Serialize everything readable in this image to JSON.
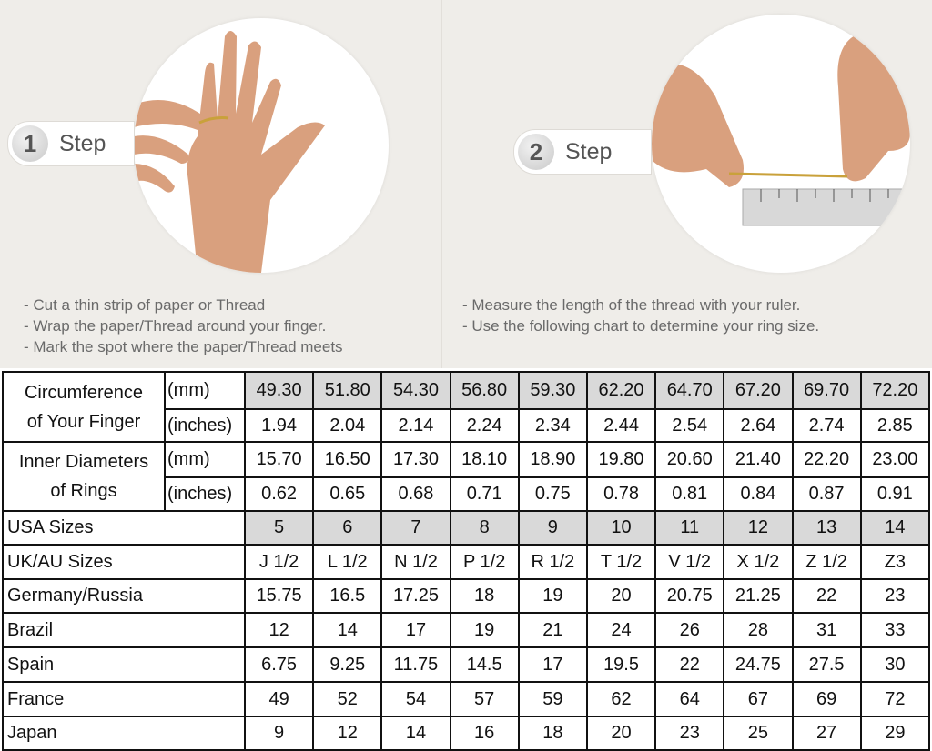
{
  "steps": [
    {
      "number": "1",
      "label": "Step",
      "instructions": [
        "-  Cut a thin strip of paper or Thread",
        "-  Wrap the paper/Thread around your finger.",
        "-  Mark the spot where the paper/Thread meets"
      ]
    },
    {
      "number": "2",
      "label": "Step",
      "instructions": [
        "-  Measure the length of the thread with your ruler.",
        "-  Use the following chart to determine your ring size."
      ]
    }
  ],
  "colors": {
    "background": "#efede9",
    "shaded_cell": "#d9d9d9",
    "border": "#111111",
    "skin": "#d9a07e"
  },
  "table": {
    "circumference": {
      "label_line1": "Circumference",
      "label_line2": "of Your Finger",
      "mm_label": "(mm)",
      "mm": [
        "49.30",
        "51.80",
        "54.30",
        "56.80",
        "59.30",
        "62.20",
        "64.70",
        "67.20",
        "69.70",
        "72.20"
      ],
      "in_label": "(inches)",
      "in": [
        "1.94",
        "2.04",
        "2.14",
        "2.24",
        "2.34",
        "2.44",
        "2.54",
        "2.64",
        "2.74",
        "2.85"
      ]
    },
    "diameter": {
      "label_line1": "Inner Diameters",
      "label_line2": "of Rings",
      "mm_label": "(mm)",
      "mm": [
        "15.70",
        "16.50",
        "17.30",
        "18.10",
        "18.90",
        "19.80",
        "20.60",
        "21.40",
        "22.20",
        "23.00"
      ],
      "in_label": "(inches)",
      "in": [
        "0.62",
        "0.65",
        "0.68",
        "0.71",
        "0.75",
        "0.78",
        "0.81",
        "0.84",
        "0.87",
        "0.91"
      ]
    },
    "rows": [
      {
        "label": "USA Sizes",
        "shaded": true,
        "values": [
          "5",
          "6",
          "7",
          "8",
          "9",
          "10",
          "11",
          "12",
          "13",
          "14"
        ]
      },
      {
        "label": "UK/AU Sizes",
        "values": [
          "J 1/2",
          "L 1/2",
          "N 1/2",
          "P 1/2",
          "R 1/2",
          "T 1/2",
          "V 1/2",
          "X 1/2",
          "Z 1/2",
          "Z3"
        ]
      },
      {
        "label": "Germany/Russia",
        "values": [
          "15.75",
          "16.5",
          "17.25",
          "18",
          "19",
          "20",
          "20.75",
          "21.25",
          "22",
          "23"
        ]
      },
      {
        "label": "Brazil",
        "values": [
          "12",
          "14",
          "17",
          "19",
          "21",
          "24",
          "26",
          "28",
          "31",
          "33"
        ]
      },
      {
        "label": "Spain",
        "values": [
          "6.75",
          "9.25",
          "11.75",
          "14.5",
          "17",
          "19.5",
          "22",
          "24.75",
          "27.5",
          "30"
        ]
      },
      {
        "label": "France",
        "values": [
          "49",
          "52",
          "54",
          "57",
          "59",
          "62",
          "64",
          "67",
          "69",
          "72"
        ]
      },
      {
        "label": "Japan",
        "values": [
          "9",
          "12",
          "14",
          "16",
          "18",
          "20",
          "23",
          "25",
          "27",
          "29"
        ]
      }
    ]
  }
}
